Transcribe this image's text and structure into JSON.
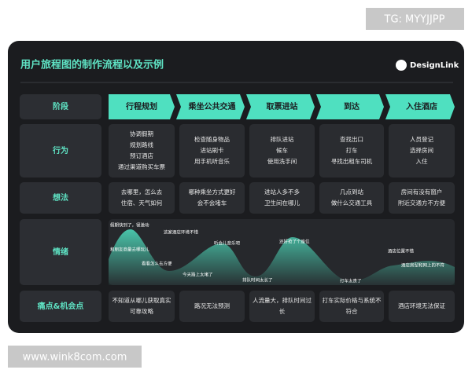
{
  "tag": "TG: MYYJJPP",
  "watermark": "www.wink8com.com",
  "header": {
    "title": "用户旅程图的制作流程以及示例",
    "logo": "DesignLink"
  },
  "rows": [
    {
      "label": "阶段",
      "cells": [
        [
          "行程规划"
        ],
        [
          "乘坐公共交通"
        ],
        [
          "取票进站"
        ],
        [
          "到达"
        ],
        [
          "入住酒店"
        ]
      ]
    },
    {
      "label": "行为",
      "cells": [
        [
          "协调假期",
          "规划路线",
          "预订酒店",
          "通过渠道购买车票"
        ],
        [
          "检查随身物品",
          "进站刷卡",
          "用手机听音乐"
        ],
        [
          "排队进站",
          "候车",
          "使用洗手间"
        ],
        [
          "查找出口",
          "打车",
          "寻找出租车司机"
        ],
        [
          "人员登记",
          "选择房间",
          "入住"
        ]
      ]
    },
    {
      "label": "想法",
      "cells": [
        [
          "去哪里，怎么去",
          "住宿、天气如何"
        ],
        [
          "哪种乘坐方式更好",
          "会不会堵车"
        ],
        [
          "进站人多不多",
          "卫生间在哪儿"
        ],
        [
          "几点到站",
          "做什么交通工具"
        ],
        [
          "房间有没有窗户",
          "附近交通方不方便"
        ]
      ]
    },
    {
      "label": "情绪",
      "cells": []
    },
    {
      "label": "痛点&机会点",
      "cells": [
        [
          "不知道从哪儿获取真实",
          "可靠攻略"
        ],
        [
          "路况无法预测"
        ],
        [
          "人流量大，排队时间过",
          "长"
        ],
        [
          "打车实际价格与系统不",
          "符合"
        ],
        [
          "酒店环境无法保证"
        ]
      ]
    }
  ],
  "emotions": [
    "假期快到了，很激动",
    "这家酒店环境不错",
    "和朋友商量去哪玩儿",
    "听会儿音乐吧",
    "还好抢了个座位",
    "看看怎么去方便",
    "今天路上太堵了",
    "排队时间太长了",
    "打车太贵了",
    "酒店位置不错",
    "酒店房型和网上的不符"
  ]
}
